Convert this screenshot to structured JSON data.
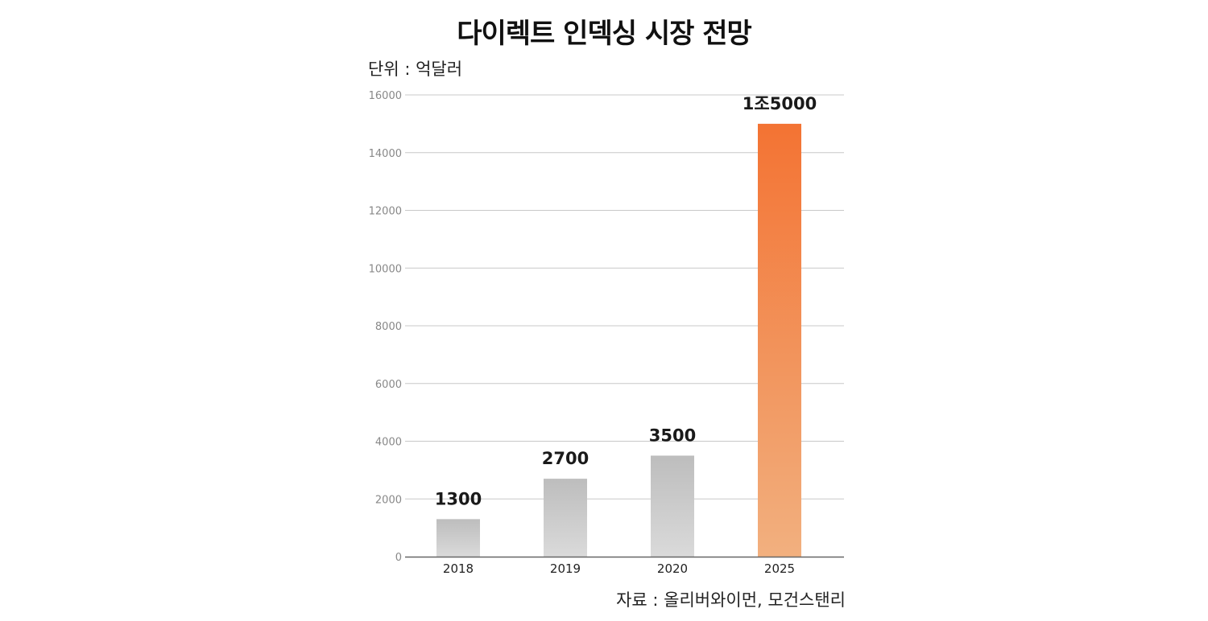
{
  "chart_data": {
    "type": "bar",
    "title": "다이렉트 인덱싱 시장 전망",
    "unit_label": "단위 : 억달러",
    "source": "자료 : 올리버와이먼, 모건스탠리",
    "categories": [
      "2018",
      "2019",
      "2020",
      "2025"
    ],
    "values": [
      1300,
      2700,
      3500,
      15000
    ],
    "data_labels": [
      "1300",
      "2700",
      "3500",
      "1조5000"
    ],
    "ylim": [
      0,
      16000
    ],
    "yticks": [
      "0",
      "2000",
      "4000",
      "6000",
      "8000",
      "10000",
      "12000",
      "14000",
      "16000"
    ],
    "grid": true,
    "colors": {
      "historical_top": "#bdbdbd",
      "historical_bottom": "#dadada",
      "forecast_top": "#f37333",
      "forecast_bottom": "#f2b07f",
      "gridline": "#c8c8c8",
      "axis": "#666666"
    }
  }
}
